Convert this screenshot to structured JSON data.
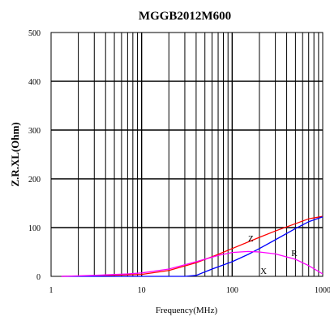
{
  "chart_data": {
    "type": "line",
    "title": "MGGB2012M600",
    "xlabel": "Frequency(MHz)",
    "ylabel": "Z.R.XL(Ohm)",
    "x_scale": "log",
    "xlim": [
      1,
      1000
    ],
    "ylim": [
      0,
      500
    ],
    "x_ticks": [
      1,
      10,
      100,
      1000
    ],
    "x_tick_labels": [
      "1",
      "10",
      "100",
      "1000"
    ],
    "y_ticks": [
      0,
      100,
      200,
      300,
      400,
      500
    ],
    "y_tick_labels": [
      "0",
      "100",
      "200",
      "300",
      "400",
      "500"
    ],
    "grid": true,
    "series": [
      {
        "name": "Z",
        "color": "#ff0000",
        "points": [
          [
            1.3,
            0
          ],
          [
            3,
            1
          ],
          [
            10,
            4
          ],
          [
            20,
            12
          ],
          [
            40,
            28
          ],
          [
            70,
            45
          ],
          [
            100,
            57
          ],
          [
            200,
            80
          ],
          [
            300,
            93
          ],
          [
            500,
            108
          ],
          [
            700,
            118
          ],
          [
            1000,
            123
          ]
        ]
      },
      {
        "name": "R",
        "color": "#0000ff",
        "points": [
          [
            1.3,
            0
          ],
          [
            10,
            0
          ],
          [
            30,
            0
          ],
          [
            40,
            2
          ],
          [
            60,
            15
          ],
          [
            100,
            30
          ],
          [
            150,
            45
          ],
          [
            200,
            57
          ],
          [
            300,
            75
          ],
          [
            500,
            98
          ],
          [
            700,
            112
          ],
          [
            1000,
            122
          ]
        ]
      },
      {
        "name": "X",
        "color": "#ff00ff",
        "points": [
          [
            1.3,
            0
          ],
          [
            3,
            2
          ],
          [
            7,
            5
          ],
          [
            10,
            7
          ],
          [
            20,
            15
          ],
          [
            40,
            30
          ],
          [
            70,
            43
          ],
          [
            100,
            49
          ],
          [
            150,
            51
          ],
          [
            200,
            50
          ],
          [
            300,
            46
          ],
          [
            500,
            35
          ],
          [
            700,
            22
          ],
          [
            1000,
            5
          ]
        ]
      }
    ]
  }
}
